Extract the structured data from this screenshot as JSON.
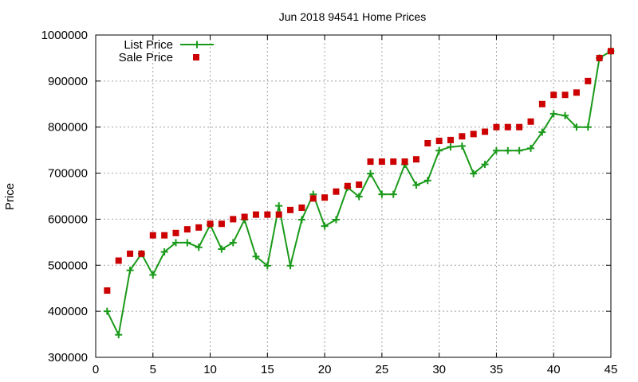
{
  "chart_data": {
    "type": "line",
    "title": "Jun 2018 94541 Home Prices",
    "xlabel": "",
    "ylabel": "Price",
    "xlim": [
      0,
      45
    ],
    "ylim": [
      300000,
      1000000
    ],
    "x_ticks": [
      0,
      5,
      10,
      15,
      20,
      25,
      30,
      35,
      40,
      45
    ],
    "y_ticks": [
      300000,
      400000,
      500000,
      600000,
      700000,
      800000,
      900000,
      1000000
    ],
    "grid": true,
    "legend_position": "top-left",
    "series": [
      {
        "name": "List Price",
        "style": "line-points",
        "marker": "plus",
        "color": "#1a9a1a",
        "x": [
          1,
          2,
          3,
          4,
          5,
          6,
          7,
          8,
          9,
          10,
          11,
          12,
          13,
          14,
          15,
          16,
          17,
          18,
          19,
          20,
          21,
          22,
          23,
          24,
          25,
          26,
          27,
          28,
          29,
          30,
          31,
          32,
          33,
          34,
          35,
          36,
          37,
          38,
          39,
          40,
          41,
          42,
          43,
          44,
          45
        ],
        "values": [
          400000,
          349000,
          489000,
          525000,
          479000,
          529000,
          549000,
          549000,
          539000,
          588000,
          535000,
          549000,
          599000,
          519000,
          499000,
          629000,
          499000,
          599000,
          654000,
          585000,
          599000,
          669000,
          649000,
          699000,
          654000,
          654000,
          719000,
          674000,
          684000,
          749000,
          757000,
          759000,
          699000,
          719000,
          749000,
          749000,
          749000,
          754000,
          789000,
          829000,
          825000,
          800000,
          800000,
          950000,
          965000
        ]
      },
      {
        "name": "Sale Price",
        "style": "points",
        "marker": "square",
        "color": "#cc0000",
        "x": [
          1,
          2,
          3,
          4,
          5,
          6,
          7,
          8,
          9,
          10,
          11,
          12,
          13,
          14,
          15,
          16,
          17,
          18,
          19,
          20,
          21,
          22,
          23,
          24,
          25,
          26,
          27,
          28,
          29,
          30,
          31,
          32,
          33,
          34,
          35,
          36,
          37,
          38,
          39,
          40,
          41,
          42,
          43,
          44,
          45
        ],
        "values": [
          445000,
          510000,
          525000,
          525000,
          565000,
          565000,
          570000,
          578000,
          582000,
          590000,
          590000,
          600000,
          605000,
          610000,
          610000,
          610000,
          620000,
          625000,
          645000,
          647000,
          660000,
          672000,
          675000,
          725000,
          725000,
          725000,
          725000,
          730000,
          765000,
          770000,
          772000,
          780000,
          785000,
          790000,
          800000,
          800000,
          800000,
          812000,
          850000,
          870000,
          870000,
          875000,
          900000,
          950000,
          965000
        ]
      }
    ]
  }
}
